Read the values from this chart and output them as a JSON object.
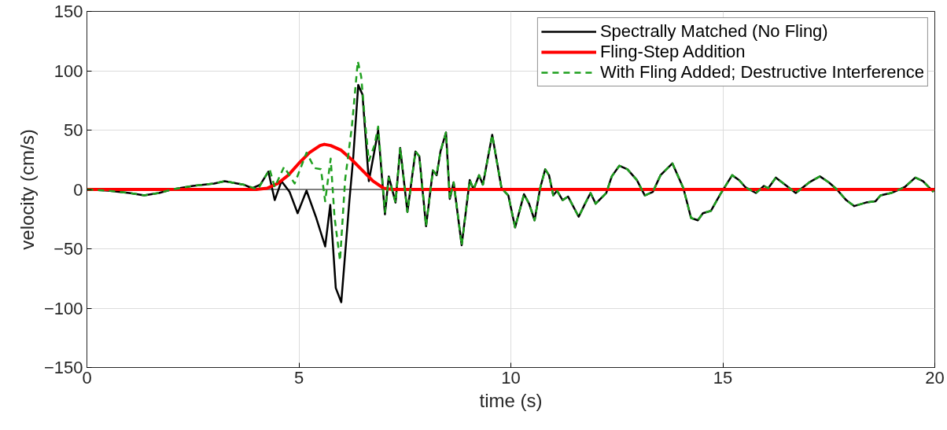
{
  "chart_data": {
    "type": "line",
    "xlabel": "time (s)",
    "ylabel": "velocity (cm/s)",
    "xlim": [
      0,
      20
    ],
    "ylim": [
      -150,
      150
    ],
    "xticks": [
      0,
      5,
      10,
      15,
      20
    ],
    "yticks": [
      -150,
      -100,
      -50,
      0,
      50,
      100,
      150
    ],
    "grid": true,
    "legend": "top right",
    "ref_lines": [
      {
        "axis": "y",
        "value": 0,
        "color": "#808080"
      }
    ],
    "series": [
      {
        "name": "Spectrally Matched (No Fling)",
        "color": "#000000",
        "line_style": "solid",
        "x": [
          0,
          0.5,
          1.0,
          1.35,
          1.7,
          2.0,
          2.5,
          3.0,
          3.25,
          3.7,
          3.9,
          4.09,
          4.28,
          4.43,
          4.59,
          4.78,
          4.97,
          5.18,
          5.4,
          5.62,
          5.74,
          5.87,
          6.0,
          6.19,
          6.28,
          6.4,
          6.5,
          6.65,
          6.78,
          6.87,
          7.03,
          7.12,
          7.28,
          7.39,
          7.56,
          7.75,
          7.84,
          8.0,
          8.16,
          8.25,
          8.34,
          8.47,
          8.56,
          8.65,
          8.84,
          9.03,
          9.12,
          9.25,
          9.34,
          9.56,
          9.78,
          9.94,
          10.1,
          10.31,
          10.43,
          10.56,
          10.69,
          10.81,
          10.9,
          11.0,
          11.09,
          11.22,
          11.35,
          11.6,
          11.75,
          11.88,
          12.0,
          12.25,
          12.38,
          12.56,
          12.75,
          12.97,
          13.16,
          13.35,
          13.53,
          13.81,
          14.07,
          14.25,
          14.41,
          14.53,
          14.72,
          14.94,
          15.22,
          15.38,
          15.53,
          15.78,
          15.97,
          16.07,
          16.25,
          16.47,
          16.72,
          17.04,
          17.29,
          17.5,
          17.69,
          17.91,
          18.1,
          18.38,
          18.6,
          18.72,
          18.97,
          19.29,
          19.54,
          19.72,
          19.97
        ],
        "values": [
          0,
          -1,
          -3,
          -5,
          -3,
          0,
          3,
          5,
          7,
          4,
          1,
          4,
          15,
          -9,
          7,
          -2,
          -20,
          -1,
          -23,
          -48,
          -13,
          -83,
          -95,
          -10,
          26,
          88,
          80,
          7,
          32,
          50,
          -21,
          11,
          -11,
          35,
          -19,
          32,
          28,
          -31,
          16,
          12,
          32,
          48,
          -8,
          6,
          -47,
          8,
          0,
          12,
          4,
          46,
          1,
          -5,
          -32,
          -4,
          -12,
          -26,
          1,
          17,
          12,
          -5,
          -1,
          -9,
          -6,
          -23,
          -12,
          -3,
          -12,
          -3,
          11,
          20,
          17,
          8,
          -5,
          -2,
          12,
          22,
          1,
          -24,
          -26,
          -20,
          -18,
          -4,
          12,
          8,
          2,
          -3,
          3,
          1,
          10,
          4,
          -3,
          6,
          11,
          6,
          0,
          -9,
          -14,
          -11,
          -10,
          -5,
          -3,
          2,
          10,
          7,
          -2
        ]
      },
      {
        "name": "Fling-Step Addition",
        "color": "#ff0000",
        "line_style": "solid",
        "x": [
          0,
          4.0,
          4.25,
          4.5,
          4.75,
          5.0,
          5.25,
          5.5,
          5.6,
          5.75,
          6.0,
          6.25,
          6.5,
          6.75,
          7.0,
          7.2,
          20
        ],
        "values": [
          0,
          0,
          1,
          5,
          12,
          22,
          31,
          37,
          38,
          37,
          33,
          25,
          16,
          7,
          1,
          0,
          0
        ]
      },
      {
        "name": "With Fling Added; Destructive Interference",
        "color": "#1fa01f",
        "line_style": "dashed",
        "x": [
          0,
          0.5,
          1.0,
          1.35,
          1.7,
          2.0,
          2.5,
          3.0,
          3.25,
          3.7,
          4.03,
          4.31,
          4.43,
          4.65,
          4.9,
          5.18,
          5.37,
          5.52,
          5.62,
          5.75,
          5.84,
          5.97,
          6.09,
          6.25,
          6.39,
          6.47,
          6.56,
          6.65,
          6.78,
          6.87,
          7.03,
          7.12,
          7.28,
          7.39,
          7.56,
          7.75,
          7.84,
          8.0,
          8.16,
          8.25,
          8.34,
          8.47,
          8.56,
          8.65,
          8.84,
          9.03,
          9.12,
          9.25,
          9.34,
          9.56,
          9.78,
          9.94,
          10.1,
          10.31,
          10.43,
          10.56,
          10.69,
          10.81,
          10.9,
          11.0,
          11.09,
          11.22,
          11.35,
          11.6,
          11.75,
          11.88,
          12.0,
          12.25,
          12.38,
          12.56,
          12.75,
          12.97,
          13.16,
          13.35,
          13.53,
          13.81,
          14.07,
          14.25,
          14.41,
          14.53,
          14.72,
          14.94,
          15.22,
          15.38,
          15.53,
          15.78,
          15.97,
          16.07,
          16.25,
          16.47,
          16.72,
          17.04,
          17.29,
          17.5,
          17.69,
          17.91,
          18.1,
          18.38,
          18.6,
          18.72,
          18.97,
          19.29,
          19.54,
          19.72,
          19.97
        ],
        "values": [
          0,
          -1,
          -3,
          -5,
          -3,
          0,
          3,
          5,
          7,
          4,
          0,
          17,
          2,
          19,
          5,
          31,
          18,
          17,
          -10,
          26,
          -23,
          -60,
          8,
          53,
          108,
          95,
          57,
          24,
          37,
          53,
          -19,
          10,
          -11,
          35,
          -19,
          32,
          28,
          -31,
          16,
          12,
          32,
          48,
          -8,
          6,
          -47,
          8,
          0,
          12,
          4,
          46,
          1,
          -5,
          -32,
          -4,
          -12,
          -26,
          1,
          17,
          12,
          -5,
          -1,
          -9,
          -6,
          -23,
          -12,
          -3,
          -12,
          -3,
          11,
          20,
          17,
          8,
          -5,
          -2,
          12,
          22,
          1,
          -24,
          -26,
          -20,
          -18,
          -4,
          12,
          8,
          2,
          -3,
          3,
          1,
          10,
          4,
          -3,
          6,
          11,
          6,
          0,
          -9,
          -14,
          -11,
          -10,
          -5,
          -3,
          2,
          10,
          7,
          -2
        ]
      }
    ]
  }
}
